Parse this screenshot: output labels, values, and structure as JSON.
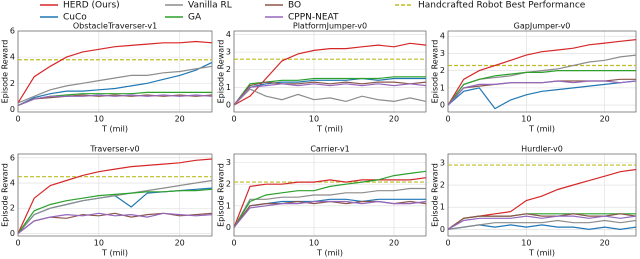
{
  "chart_data": [
    {
      "type": "line",
      "title": "ObstacleTraverser-v1",
      "x_label": "T (mil)",
      "y_label": "Episode Reward",
      "x": [
        0,
        2,
        4,
        6,
        8,
        10,
        12,
        14,
        16,
        18,
        20,
        22,
        24
      ],
      "xlim": [
        0,
        24
      ],
      "xticks": [
        0,
        10,
        20
      ],
      "ylim": [
        -0.2,
        6
      ],
      "yticks": [
        0,
        2,
        4,
        6
      ],
      "grid": true,
      "reference": 3.8,
      "reference_name": "Handcrafted Robot Best Performance",
      "reference_color": "#bcbd22",
      "series": [
        {
          "name": "HERD (Ours)",
          "color": "#d62728",
          "values": [
            0.5,
            2.5,
            3.3,
            4,
            4.4,
            4.6,
            4.8,
            4.9,
            5,
            5.1,
            5.1,
            5.2,
            5.1
          ]
        },
        {
          "name": "CuCo",
          "color": "#1f77b4",
          "values": [
            0.3,
            0.9,
            1.2,
            1.4,
            1.4,
            1.5,
            1.6,
            1.8,
            2,
            2.3,
            2.6,
            3,
            3.6
          ]
        },
        {
          "name": "Vanilla RL",
          "color": "#8c8c8c",
          "values": [
            0.5,
            1,
            1.5,
            1.8,
            2,
            2.2,
            2.4,
            2.6,
            2.6,
            2.8,
            2.9,
            3.1,
            3.3
          ]
        },
        {
          "name": "GA",
          "color": "#2ca02c",
          "values": [
            0.3,
            0.8,
            1,
            1.1,
            1.2,
            1.2,
            1.2,
            1.2,
            1.3,
            1.3,
            1.3,
            1.3,
            1.3
          ]
        },
        {
          "name": "BO",
          "color": "#8c564b",
          "values": [
            0.3,
            0.8,
            0.9,
            1,
            1.1,
            1,
            1.1,
            1,
            1.1,
            1,
            1.1,
            1,
            1.1
          ]
        },
        {
          "name": "CPPN-NEAT",
          "color": "#9467bd",
          "values": [
            0.3,
            0.8,
            1,
            1,
            1,
            1.1,
            1,
            1.1,
            1,
            1.1,
            1,
            1.1,
            1
          ]
        }
      ]
    },
    {
      "type": "line",
      "title": "PlatformJumper-v0",
      "x_label": "T (mil)",
      "y_label": "Episode Reward",
      "x": [
        0,
        2,
        4,
        6,
        8,
        10,
        12,
        14,
        16,
        18,
        20,
        22,
        24
      ],
      "xlim": [
        0,
        24
      ],
      "xticks": [
        0,
        10,
        20
      ],
      "ylim": [
        -0.4,
        4.2
      ],
      "yticks": [
        0,
        1,
        2,
        3,
        4
      ],
      "grid": true,
      "reference": 2.6,
      "reference_color": "#bcbd22",
      "series": [
        {
          "name": "HERD (Ours)",
          "color": "#d62728",
          "values": [
            0,
            0.5,
            1.5,
            2.5,
            2.9,
            3.1,
            3.2,
            3.2,
            3.3,
            3.4,
            3.3,
            3.5,
            3.4
          ]
        },
        {
          "name": "CuCo",
          "color": "#1f77b4",
          "values": [
            0,
            1,
            1.2,
            1.3,
            1.3,
            1.4,
            1.4,
            1.4,
            1.5,
            1.4,
            1.5,
            1.5,
            1.5
          ]
        },
        {
          "name": "Vanilla RL",
          "color": "#8c8c8c",
          "values": [
            0,
            0.9,
            0.5,
            0.3,
            0.6,
            0.3,
            0.4,
            0.2,
            0.5,
            0.3,
            0.2,
            0.4,
            0.2
          ]
        },
        {
          "name": "GA",
          "color": "#2ca02c",
          "values": [
            0,
            1.2,
            1.3,
            1.4,
            1.4,
            1.5,
            1.5,
            1.5,
            1.5,
            1.5,
            1.6,
            1.6,
            1.6
          ]
        },
        {
          "name": "BO",
          "color": "#8c564b",
          "values": [
            0,
            1.1,
            1.3,
            1.2,
            1.2,
            1.3,
            1.2,
            1.3,
            1.2,
            1.3,
            1.3,
            1.2,
            1.3
          ]
        },
        {
          "name": "CPPN-NEAT",
          "color": "#9467bd",
          "values": [
            0,
            1,
            1.1,
            1.2,
            1.1,
            1.2,
            1.1,
            1.2,
            1.1,
            1.2,
            1.1,
            1.2,
            1.1
          ]
        }
      ]
    },
    {
      "type": "line",
      "title": "GapJumper-v0",
      "x_label": "T (mil)",
      "y_label": "Episode Reward",
      "x": [
        0,
        2,
        4,
        6,
        8,
        10,
        12,
        14,
        16,
        18,
        20,
        22,
        24
      ],
      "xlim": [
        0,
        24
      ],
      "xticks": [
        0,
        10,
        20
      ],
      "ylim": [
        -0.4,
        4.3
      ],
      "yticks": [
        0,
        1,
        2,
        3,
        4
      ],
      "grid": true,
      "reference": 2.3,
      "reference_color": "#bcbd22",
      "series": [
        {
          "name": "HERD (Ours)",
          "color": "#d62728",
          "values": [
            0,
            1.5,
            2,
            2.3,
            2.6,
            2.9,
            3.1,
            3.2,
            3.3,
            3.5,
            3.6,
            3.7,
            3.8
          ]
        },
        {
          "name": "CuCo",
          "color": "#1f77b4",
          "values": [
            0,
            0.8,
            1,
            -0.2,
            0.3,
            0.6,
            0.8,
            0.9,
            1,
            1.1,
            1.2,
            1.3,
            1.4
          ]
        },
        {
          "name": "Vanilla RL",
          "color": "#8c8c8c",
          "values": [
            0,
            1.2,
            1.5,
            1.6,
            1.7,
            1.9,
            2,
            2.1,
            2.3,
            2.5,
            2.6,
            2.8,
            2.9
          ]
        },
        {
          "name": "GA",
          "color": "#2ca02c",
          "values": [
            0,
            1.2,
            1.5,
            1.7,
            1.8,
            1.9,
            1.9,
            2,
            2,
            2,
            2,
            2,
            2
          ]
        },
        {
          "name": "BO",
          "color": "#8c564b",
          "values": [
            0,
            1,
            1.1,
            1.2,
            1.3,
            1.3,
            1.3,
            1.4,
            1.4,
            1.4,
            1.4,
            1.5,
            1.5
          ]
        },
        {
          "name": "CPPN-NEAT",
          "color": "#9467bd",
          "values": [
            0,
            1,
            1.2,
            1.2,
            1.3,
            1.3,
            1.3,
            1.4,
            1.3,
            1.4,
            1.4,
            1.3,
            1.4
          ]
        }
      ]
    },
    {
      "type": "line",
      "title": "Traverser-v0",
      "x_label": "T (mil)",
      "y_label": "Episode Reward",
      "x": [
        0,
        2,
        4,
        6,
        8,
        10,
        12,
        14,
        16,
        18,
        20,
        22,
        24
      ],
      "xlim": [
        0,
        24
      ],
      "xticks": [
        0,
        10,
        20
      ],
      "ylim": [
        -0.2,
        6.3
      ],
      "yticks": [
        0,
        2,
        4,
        6
      ],
      "grid": true,
      "reference": 4.5,
      "reference_color": "#bcbd22",
      "series": [
        {
          "name": "HERD (Ours)",
          "color": "#d62728",
          "values": [
            0,
            2.8,
            3.8,
            4.2,
            4.6,
            4.9,
            5.1,
            5.3,
            5.4,
            5.5,
            5.6,
            5.8,
            5.9
          ]
        },
        {
          "name": "CuCo",
          "color": "#1f77b4",
          "values": [
            0,
            1.5,
            2,
            2.3,
            2.6,
            2.8,
            3,
            2.1,
            3.2,
            3.3,
            3.4,
            3.5,
            3.6
          ]
        },
        {
          "name": "Vanilla RL",
          "color": "#8c8c8c",
          "values": [
            0,
            1.5,
            2,
            2.3,
            2.6,
            2.8,
            3,
            3.2,
            3.4,
            3.6,
            3.8,
            4,
            4.2
          ]
        },
        {
          "name": "GA",
          "color": "#2ca02c",
          "values": [
            0,
            1.8,
            2.3,
            2.6,
            2.8,
            3,
            3.1,
            3.2,
            3.3,
            3.3,
            3.4,
            3.4,
            3.5
          ]
        },
        {
          "name": "BO",
          "color": "#8c564b",
          "values": [
            0,
            1,
            1.3,
            1.2,
            1.5,
            1.4,
            1.6,
            1.3,
            1.5,
            1.6,
            1.4,
            1.5,
            1.6
          ]
        },
        {
          "name": "CPPN-NEAT",
          "color": "#9467bd",
          "values": [
            0,
            1,
            1.3,
            1.5,
            1.4,
            1.6,
            1.4,
            1.5,
            1.3,
            1.6,
            1.5,
            1.4,
            1.5
          ]
        }
      ]
    },
    {
      "type": "line",
      "title": "Carrier-v1",
      "x_label": "T (mil)",
      "y_label": "Episode Reward",
      "x": [
        0,
        2,
        4,
        6,
        8,
        10,
        12,
        14,
        16,
        18,
        20,
        22,
        24
      ],
      "xlim": [
        0,
        24
      ],
      "xticks": [
        0,
        10,
        20
      ],
      "ylim": [
        -0.4,
        3.4
      ],
      "yticks": [
        0,
        1,
        2,
        3
      ],
      "grid": true,
      "reference": 2.1,
      "reference_color": "#bcbd22",
      "series": [
        {
          "name": "HERD (Ours)",
          "color": "#d62728",
          "values": [
            0,
            1.9,
            2,
            2,
            2.1,
            2.1,
            2.2,
            2.1,
            2.2,
            2.2,
            2.2,
            2.2,
            2.3
          ]
        },
        {
          "name": "CuCo",
          "color": "#1f77b4",
          "values": [
            0,
            1,
            1.1,
            1.2,
            1.2,
            1.2,
            1.3,
            1.3,
            1.2,
            1.3,
            1.3,
            1.3,
            1.3
          ]
        },
        {
          "name": "Vanilla RL",
          "color": "#8c8c8c",
          "values": [
            0,
            1.3,
            1.3,
            1.4,
            1.4,
            1.5,
            1.5,
            1.6,
            1.6,
            1.7,
            1.7,
            1.8,
            1.8
          ]
        },
        {
          "name": "GA",
          "color": "#2ca02c",
          "values": [
            0,
            1.2,
            1.5,
            1.6,
            1.7,
            1.7,
            1.9,
            2,
            2.1,
            2.2,
            2.4,
            2.5,
            2.6
          ]
        },
        {
          "name": "BO",
          "color": "#8c564b",
          "values": [
            0,
            1,
            1.1,
            1.1,
            1.2,
            1.1,
            1.2,
            1.1,
            1.2,
            1.2,
            1.1,
            1.2,
            1.1
          ]
        },
        {
          "name": "CPPN-NEAT",
          "color": "#9467bd",
          "values": [
            0,
            0.9,
            1,
            1.1,
            1.1,
            1.2,
            1.2,
            1.2,
            1.1,
            1.2,
            1.1,
            1.1,
            1.2
          ]
        }
      ]
    },
    {
      "type": "line",
      "title": "Hurdler-v0",
      "x_label": "T (mil)",
      "y_label": "Episode Reward",
      "x": [
        0,
        2,
        4,
        6,
        8,
        10,
        12,
        14,
        16,
        18,
        20,
        22,
        24
      ],
      "xlim": [
        0,
        24
      ],
      "xticks": [
        0,
        10,
        20
      ],
      "ylim": [
        -0.3,
        3.4
      ],
      "yticks": [
        0,
        1,
        2,
        3
      ],
      "grid": true,
      "reference": 2.9,
      "reference_color": "#bcbd22",
      "series": [
        {
          "name": "HERD (Ours)",
          "color": "#d62728",
          "values": [
            0,
            0.5,
            0.6,
            0.7,
            0.8,
            1.3,
            1.5,
            1.8,
            2,
            2.2,
            2.4,
            2.6,
            2.7
          ]
        },
        {
          "name": "CuCo",
          "color": "#1f77b4",
          "values": [
            0,
            0.1,
            0.2,
            0.1,
            0.2,
            0.1,
            0.2,
            0.1,
            0.1,
            0,
            0.1,
            0,
            0.1
          ]
        },
        {
          "name": "Vanilla RL",
          "color": "#8c8c8c",
          "values": [
            0,
            0.1,
            0.2,
            0.3,
            0.3,
            0.3,
            0.3,
            0.4,
            0.3,
            0.3,
            0.4,
            0.3,
            0.4
          ]
        },
        {
          "name": "GA",
          "color": "#2ca02c",
          "values": [
            0,
            0.5,
            0.6,
            0.6,
            0.6,
            0.7,
            0.7,
            0.7,
            0.7,
            0.7,
            0.7,
            0.7,
            0.7
          ]
        },
        {
          "name": "BO",
          "color": "#8c564b",
          "values": [
            0,
            0.5,
            0.6,
            0.6,
            0.6,
            0.7,
            0.6,
            0.6,
            0.7,
            0.6,
            0.6,
            0.7,
            0.6
          ]
        },
        {
          "name": "CPPN-NEAT",
          "color": "#9467bd",
          "values": [
            0,
            0.4,
            0.5,
            0.5,
            0.5,
            0.6,
            0.5,
            0.6,
            0.6,
            0.5,
            0.6,
            0.5,
            0.6
          ]
        }
      ]
    }
  ]
}
